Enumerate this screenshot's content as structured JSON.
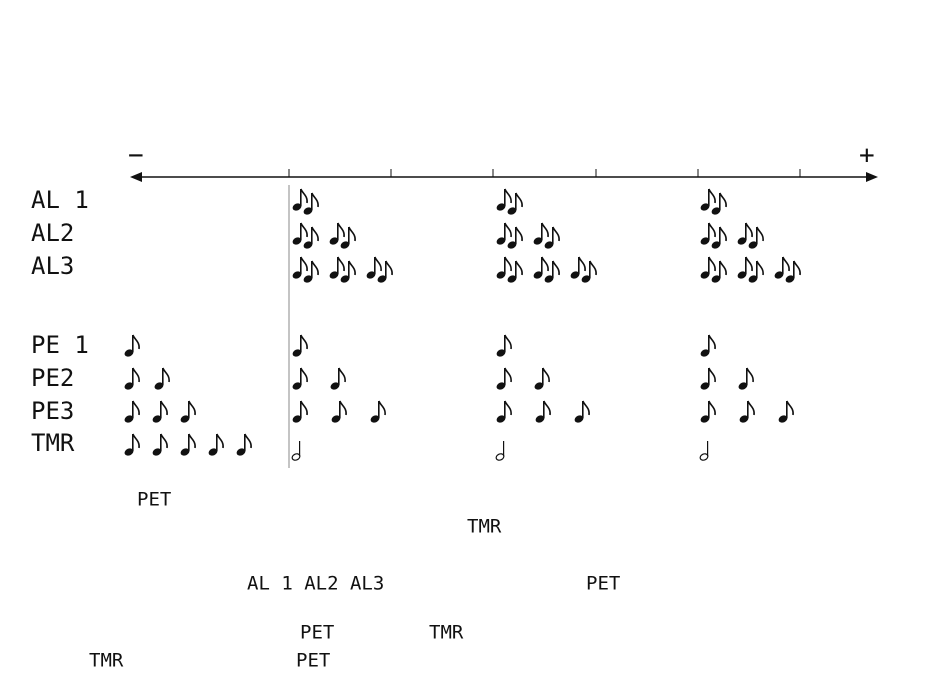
{
  "axis": {
    "minus": "−",
    "plus": "+"
  },
  "rows": [
    "AL 1",
    "AL2",
    "AL3",
    "PE 1",
    "PE2",
    "PE3",
    "TMR"
  ],
  "labels": [
    "PET",
    "TMR",
    "AL 1 AL2 AL3",
    "PET",
    "PET",
    "TMR",
    "TMR",
    "PET"
  ]
}
